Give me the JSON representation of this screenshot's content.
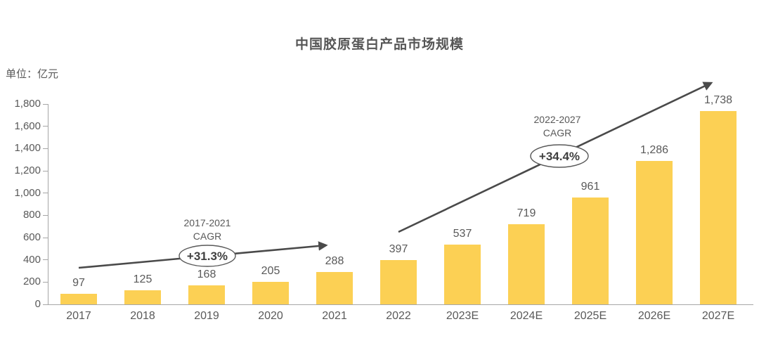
{
  "title": "中国胶原蛋白产品市场规模",
  "unit_label": "单位：亿元",
  "chart_data": {
    "type": "bar",
    "title": "中国胶原蛋白产品市场规模",
    "ylabel": "单位：亿元",
    "xlabel": "",
    "categories": [
      "2017",
      "2018",
      "2019",
      "2020",
      "2021",
      "2022",
      "2023E",
      "2024E",
      "2025E",
      "2026E",
      "2027E"
    ],
    "values": [
      97,
      125,
      168,
      205,
      288,
      397,
      537,
      719,
      961,
      1286,
      1738
    ],
    "value_labels": [
      "97",
      "125",
      "168",
      "205",
      "288",
      "397",
      "537",
      "719",
      "961",
      "1,286",
      "1,738"
    ],
    "ylim": [
      0,
      1800
    ],
    "ytick_interval": 200,
    "ytick_labels": [
      "0",
      "200",
      "400",
      "600",
      "800",
      "1,000",
      "1,200",
      "1,400",
      "1,600",
      "1,800"
    ],
    "grid": false,
    "legend": "none",
    "bar_color": "#FCD054",
    "text_color": "#595959",
    "axis_color": "#a6a6a6",
    "arrow_color": "#4a4a4a",
    "annotations": [
      {
        "range_label": "2017-2021",
        "cagr_label": "CAGR",
        "value": "+31.3%"
      },
      {
        "range_label": "2022-2027",
        "cagr_label": "CAGR",
        "value": "+34.4%"
      }
    ]
  }
}
